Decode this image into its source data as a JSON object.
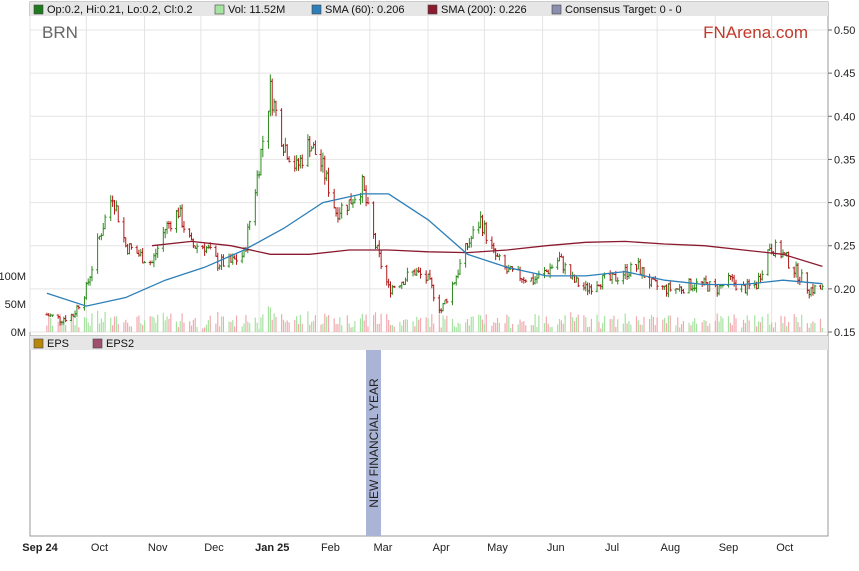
{
  "ticker": "BRN",
  "brand": "FNArena.com",
  "banner": "NEW FINANCIAL YEAR",
  "colors": {
    "up": "#2e8b1e",
    "down": "#b01818",
    "sma60": "#2c7fb8",
    "sma200": "#8b1a2f",
    "vol_up": "#a6e3a0",
    "vol_down": "#f2a9b0",
    "banner": "#a9b4d6",
    "legend_bg": "#e6e6e6"
  },
  "legend_top": [
    {
      "label": "Op:0.2, Hi:0.21, Lo:0.2, Cl:0.2",
      "color": "#1e7a1e"
    },
    {
      "label": "Vol: 11.52M",
      "color": "#a6e3a0"
    },
    {
      "label": "SMA (60): 0.206",
      "color": "#2c7fb8"
    },
    {
      "label": "SMA (200): 0.226",
      "color": "#8b1a2f"
    },
    {
      "label": "Consensus Target: 0 - 0",
      "color": "#8a8fb0"
    }
  ],
  "legend_bottom": [
    {
      "label": "EPS",
      "color": "#b8860b"
    },
    {
      "label": "EPS2",
      "color": "#a0506e"
    }
  ],
  "chart_data": {
    "type": "line",
    "title": "BRN",
    "price_axis": {
      "ylim": [
        0.15,
        0.5
      ],
      "ticks": [
        "0.50",
        "0.45",
        "0.40",
        "0.35",
        "0.30",
        "0.25",
        "0.20",
        "0.15"
      ]
    },
    "volume_axis": {
      "ticks": [
        "100M",
        "50M",
        "0M"
      ]
    },
    "x_labels": [
      "Sep 24",
      "Oct",
      "Nov",
      "Dec",
      "Jan 25",
      "Feb",
      "Mar",
      "Apr",
      "May",
      "Jun",
      "Jul",
      "Aug",
      "Sep",
      "Oct"
    ],
    "price_close": [
      {
        "date": "2024-09-10",
        "v": 0.17
      },
      {
        "date": "2024-09-17",
        "v": 0.165
      },
      {
        "date": "2024-09-24",
        "v": 0.17
      },
      {
        "date": "2024-10-01",
        "v": 0.2
      },
      {
        "date": "2024-10-08",
        "v": 0.26
      },
      {
        "date": "2024-10-15",
        "v": 0.31
      },
      {
        "date": "2024-10-22",
        "v": 0.25
      },
      {
        "date": "2024-10-29",
        "v": 0.24
      },
      {
        "date": "2024-11-05",
        "v": 0.23
      },
      {
        "date": "2024-11-12",
        "v": 0.27
      },
      {
        "date": "2024-11-19",
        "v": 0.29
      },
      {
        "date": "2024-11-26",
        "v": 0.25
      },
      {
        "date": "2024-12-03",
        "v": 0.25
      },
      {
        "date": "2024-12-10",
        "v": 0.23
      },
      {
        "date": "2024-12-17",
        "v": 0.23
      },
      {
        "date": "2024-12-24",
        "v": 0.24
      },
      {
        "date": "2024-12-31",
        "v": 0.33
      },
      {
        "date": "2025-01-07",
        "v": 0.43
      },
      {
        "date": "2025-01-14",
        "v": 0.37
      },
      {
        "date": "2025-01-21",
        "v": 0.34
      },
      {
        "date": "2025-01-28",
        "v": 0.37
      },
      {
        "date": "2025-02-04",
        "v": 0.34
      },
      {
        "date": "2025-02-11",
        "v": 0.29
      },
      {
        "date": "2025-02-18",
        "v": 0.3
      },
      {
        "date": "2025-02-25",
        "v": 0.32
      },
      {
        "date": "2025-03-04",
        "v": 0.25
      },
      {
        "date": "2025-03-11",
        "v": 0.2
      },
      {
        "date": "2025-03-18",
        "v": 0.21
      },
      {
        "date": "2025-03-25",
        "v": 0.22
      },
      {
        "date": "2025-04-01",
        "v": 0.21
      },
      {
        "date": "2025-04-08",
        "v": 0.175
      },
      {
        "date": "2025-04-15",
        "v": 0.21
      },
      {
        "date": "2025-04-22",
        "v": 0.25
      },
      {
        "date": "2025-04-29",
        "v": 0.28
      },
      {
        "date": "2025-05-06",
        "v": 0.24
      },
      {
        "date": "2025-05-13",
        "v": 0.22
      },
      {
        "date": "2025-05-20",
        "v": 0.215
      },
      {
        "date": "2025-05-27",
        "v": 0.21
      },
      {
        "date": "2025-06-03",
        "v": 0.22
      },
      {
        "date": "2025-06-10",
        "v": 0.235
      },
      {
        "date": "2025-06-17",
        "v": 0.21
      },
      {
        "date": "2025-06-24",
        "v": 0.2
      },
      {
        "date": "2025-07-01",
        "v": 0.21
      },
      {
        "date": "2025-07-08",
        "v": 0.21
      },
      {
        "date": "2025-07-15",
        "v": 0.22
      },
      {
        "date": "2025-07-22",
        "v": 0.225
      },
      {
        "date": "2025-07-29",
        "v": 0.205
      },
      {
        "date": "2025-08-05",
        "v": 0.2
      },
      {
        "date": "2025-08-12",
        "v": 0.2
      },
      {
        "date": "2025-08-19",
        "v": 0.205
      },
      {
        "date": "2025-08-26",
        "v": 0.205
      },
      {
        "date": "2025-09-02",
        "v": 0.2
      },
      {
        "date": "2025-09-09",
        "v": 0.21
      },
      {
        "date": "2025-09-16",
        "v": 0.2
      },
      {
        "date": "2025-09-23",
        "v": 0.205
      },
      {
        "date": "2025-09-30",
        "v": 0.25
      },
      {
        "date": "2025-10-07",
        "v": 0.24
      },
      {
        "date": "2025-10-14",
        "v": 0.22
      },
      {
        "date": "2025-10-21",
        "v": 0.2
      },
      {
        "date": "2025-10-28",
        "v": 0.2
      }
    ],
    "sma60": [
      {
        "date": "2024-09-10",
        "v": 0.195
      },
      {
        "date": "2024-10-01",
        "v": 0.18
      },
      {
        "date": "2024-10-22",
        "v": 0.19
      },
      {
        "date": "2024-11-12",
        "v": 0.21
      },
      {
        "date": "2024-12-03",
        "v": 0.225
      },
      {
        "date": "2024-12-24",
        "v": 0.245
      },
      {
        "date": "2025-01-14",
        "v": 0.27
      },
      {
        "date": "2025-02-04",
        "v": 0.3
      },
      {
        "date": "2025-02-25",
        "v": 0.31
      },
      {
        "date": "2025-03-11",
        "v": 0.31
      },
      {
        "date": "2025-04-01",
        "v": 0.28
      },
      {
        "date": "2025-04-22",
        "v": 0.24
      },
      {
        "date": "2025-05-13",
        "v": 0.225
      },
      {
        "date": "2025-06-03",
        "v": 0.215
      },
      {
        "date": "2025-06-24",
        "v": 0.215
      },
      {
        "date": "2025-07-15",
        "v": 0.22
      },
      {
        "date": "2025-08-05",
        "v": 0.21
      },
      {
        "date": "2025-08-26",
        "v": 0.205
      },
      {
        "date": "2025-09-16",
        "v": 0.205
      },
      {
        "date": "2025-10-07",
        "v": 0.21
      },
      {
        "date": "2025-10-28",
        "v": 0.206
      }
    ],
    "sma200": [
      {
        "date": "2024-11-05",
        "v": 0.25
      },
      {
        "date": "2024-11-26",
        "v": 0.255
      },
      {
        "date": "2024-12-17",
        "v": 0.25
      },
      {
        "date": "2025-01-07",
        "v": 0.24
      },
      {
        "date": "2025-01-28",
        "v": 0.24
      },
      {
        "date": "2025-02-18",
        "v": 0.245
      },
      {
        "date": "2025-03-11",
        "v": 0.245
      },
      {
        "date": "2025-04-01",
        "v": 0.243
      },
      {
        "date": "2025-04-22",
        "v": 0.242
      },
      {
        "date": "2025-05-13",
        "v": 0.245
      },
      {
        "date": "2025-06-03",
        "v": 0.25
      },
      {
        "date": "2025-06-24",
        "v": 0.254
      },
      {
        "date": "2025-07-15",
        "v": 0.255
      },
      {
        "date": "2025-08-05",
        "v": 0.252
      },
      {
        "date": "2025-08-26",
        "v": 0.25
      },
      {
        "date": "2025-09-16",
        "v": 0.245
      },
      {
        "date": "2025-10-07",
        "v": 0.24
      },
      {
        "date": "2025-10-28",
        "v": 0.226
      }
    ]
  }
}
